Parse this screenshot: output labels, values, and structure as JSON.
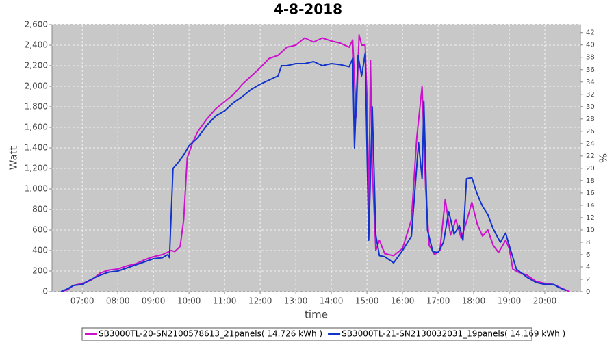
{
  "chart_data": {
    "type": "line",
    "title": "4-8-2018",
    "x_label": "time",
    "y_label": "Watt",
    "y2_label": "%",
    "xlim": [
      6.15,
      21.0
    ],
    "xticks": [
      {
        "value": 7,
        "label": "07:00"
      },
      {
        "value": 8,
        "label": "08:00"
      },
      {
        "value": 9,
        "label": "09:00"
      },
      {
        "value": 10,
        "label": "10:00"
      },
      {
        "value": 11,
        "label": "11:00"
      },
      {
        "value": 12,
        "label": "12:00"
      },
      {
        "value": 13,
        "label": "13:00"
      },
      {
        "value": 14,
        "label": "14:00"
      },
      {
        "value": 15,
        "label": "15:00"
      },
      {
        "value": 16,
        "label": "16:00"
      },
      {
        "value": 17,
        "label": "17:00"
      },
      {
        "value": 18,
        "label": "18:00"
      },
      {
        "value": 19,
        "label": "19:00"
      },
      {
        "value": 20,
        "label": "20:00"
      }
    ],
    "ylim": [
      0,
      2600
    ],
    "yticks": [
      0,
      200,
      400,
      600,
      800,
      {
        "value": 1000,
        "label": "1,000"
      },
      {
        "value": 1200,
        "label": "1,200"
      },
      {
        "value": 1400,
        "label": "1,400"
      },
      {
        "value": 1600,
        "label": "1,600"
      },
      {
        "value": 1800,
        "label": "1,800"
      },
      {
        "value": 2000,
        "label": "2,000"
      },
      {
        "value": 2200,
        "label": "2,200"
      },
      {
        "value": 2400,
        "label": "2,400"
      },
      {
        "value": 2600,
        "label": "2,600"
      }
    ],
    "y2lim": [
      0,
      43.3
    ],
    "y2ticks": [
      0,
      2,
      4,
      6,
      8,
      10,
      12,
      14,
      16,
      18,
      20,
      22,
      24,
      26,
      28,
      30,
      32,
      34,
      36,
      38,
      40,
      42
    ],
    "grid": true,
    "legend": "bottom",
    "series": [
      {
        "name": "SB3000TL-20-SN2100578613_21panels( 14.726 kWh )",
        "color": "#cc11cc",
        "x": [
          6.4,
          6.6,
          6.75,
          7.0,
          7.25,
          7.5,
          7.75,
          8.0,
          8.25,
          8.5,
          8.75,
          9.0,
          9.25,
          9.5,
          9.6,
          9.75,
          9.85,
          9.95,
          10.1,
          10.25,
          10.5,
          10.75,
          11.0,
          11.25,
          11.5,
          11.75,
          12.0,
          12.25,
          12.5,
          12.75,
          13.0,
          13.25,
          13.5,
          13.75,
          14.0,
          14.25,
          14.5,
          14.6,
          14.7,
          14.78,
          14.85,
          14.95,
          15.0,
          15.05,
          15.1,
          15.15,
          15.25,
          15.35,
          15.5,
          15.75,
          16.0,
          16.25,
          16.4,
          16.55,
          16.65,
          16.75,
          16.9,
          17.05,
          17.2,
          17.35,
          17.5,
          17.65,
          17.8,
          17.95,
          18.1,
          18.25,
          18.4,
          18.55,
          18.7,
          18.9,
          19.0,
          19.1,
          19.25,
          19.5,
          19.75,
          20.0,
          20.25,
          20.5,
          20.7
        ],
        "values": [
          0,
          20,
          60,
          80,
          110,
          180,
          210,
          220,
          250,
          270,
          310,
          340,
          360,
          400,
          390,
          440,
          700,
          1300,
          1450,
          1560,
          1680,
          1780,
          1850,
          1920,
          2020,
          2100,
          2180,
          2270,
          2300,
          2380,
          2400,
          2470,
          2430,
          2470,
          2440,
          2420,
          2380,
          2450,
          1700,
          2500,
          2400,
          2400,
          1900,
          800,
          2250,
          1200,
          400,
          500,
          370,
          350,
          420,
          700,
          1500,
          2000,
          1000,
          450,
          360,
          400,
          900,
          550,
          700,
          520,
          680,
          870,
          660,
          540,
          600,
          450,
          380,
          500,
          420,
          220,
          190,
          160,
          100,
          80,
          70,
          30,
          0
        ]
      },
      {
        "name": "SB3000TL-21-SN2130032031_19panels( 14.169 kWh )",
        "color": "#1133cc",
        "x": [
          6.4,
          6.6,
          6.75,
          7.0,
          7.25,
          7.5,
          7.75,
          8.0,
          8.25,
          8.5,
          8.75,
          9.0,
          9.25,
          9.4,
          9.45,
          9.55,
          9.7,
          9.85,
          10.0,
          10.25,
          10.5,
          10.75,
          11.0,
          11.25,
          11.5,
          11.75,
          12.0,
          12.25,
          12.5,
          12.6,
          12.75,
          13.0,
          13.25,
          13.5,
          13.75,
          14.0,
          14.25,
          14.5,
          14.6,
          14.65,
          14.75,
          14.85,
          14.95,
          15.05,
          15.15,
          15.25,
          15.35,
          15.5,
          15.75,
          16.0,
          16.25,
          16.45,
          16.55,
          16.6,
          16.7,
          16.85,
          17.0,
          17.15,
          17.3,
          17.45,
          17.6,
          17.7,
          17.8,
          17.95,
          18.1,
          18.25,
          18.4,
          18.55,
          18.75,
          18.9,
          19.0,
          19.2,
          19.5,
          19.75,
          20.0,
          20.25,
          20.4,
          20.6
        ],
        "values": [
          0,
          30,
          60,
          70,
          120,
          160,
          190,
          200,
          230,
          260,
          290,
          320,
          330,
          360,
          330,
          1200,
          1260,
          1330,
          1420,
          1500,
          1620,
          1710,
          1760,
          1840,
          1900,
          1970,
          2020,
          2060,
          2100,
          2200,
          2200,
          2220,
          2220,
          2240,
          2200,
          2220,
          2210,
          2190,
          2270,
          1400,
          2300,
          2100,
          2320,
          500,
          1800,
          550,
          350,
          340,
          280,
          400,
          540,
          1450,
          1100,
          1850,
          600,
          390,
          380,
          480,
          780,
          560,
          640,
          500,
          1100,
          1110,
          950,
          830,
          750,
          610,
          480,
          570,
          450,
          220,
          140,
          90,
          70,
          70,
          40,
          10
        ]
      }
    ]
  }
}
